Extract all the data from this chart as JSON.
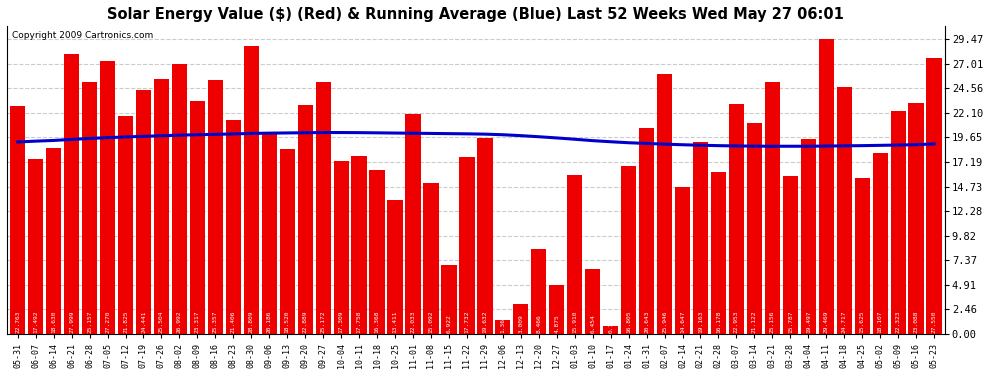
{
  "title": "Solar Energy Value ($) (Red) & Running Average (Blue) Last 52 Weeks Wed May 27 06:01",
  "copyright": "Copyright 2009 Cartronics.com",
  "bar_color": "#ee0000",
  "line_color": "#0000cc",
  "background_color": "#ffffff",
  "grid_color": "#cccccc",
  "yticks": [
    0.0,
    2.46,
    4.91,
    7.37,
    9.82,
    12.28,
    14.73,
    17.19,
    19.65,
    22.1,
    24.56,
    27.01,
    29.47
  ],
  "dates": [
    "05-31",
    "06-07",
    "06-14",
    "06-21",
    "06-28",
    "07-05",
    "07-12",
    "07-19",
    "07-26",
    "08-02",
    "08-09",
    "08-16",
    "08-23",
    "08-30",
    "09-06",
    "09-13",
    "09-20",
    "09-27",
    "10-04",
    "10-11",
    "10-18",
    "10-25",
    "11-01",
    "11-08",
    "11-15",
    "11-22",
    "11-29",
    "12-06",
    "12-13",
    "12-20",
    "12-27",
    "01-03",
    "01-10",
    "01-17",
    "01-24",
    "01-31",
    "02-07",
    "02-14",
    "02-21",
    "02-28",
    "03-07",
    "03-14",
    "03-21",
    "03-28",
    "04-04",
    "04-11",
    "04-18",
    "04-25",
    "05-02",
    "05-09",
    "05-16",
    "05-23"
  ],
  "bar_values": [
    22.763,
    17.492,
    18.63,
    27.999,
    25.157,
    27.27,
    21.825,
    24.441,
    25.504,
    26.992,
    23.317,
    25.357,
    21.406,
    28.809,
    20.186,
    18.52,
    22.889,
    25.172,
    17.309,
    17.758,
    16.368,
    13.411,
    22.033,
    15.092,
    6.922,
    17.732,
    19.632,
    1.369,
    3.009,
    8.466,
    4.875,
    15.91,
    6.454,
    0.772,
    16.805,
    20.643,
    25.946,
    14.647,
    19.163,
    16.178,
    22.953,
    21.122,
    25.156,
    15.787,
    19.497,
    29.469,
    24.717,
    15.625,
    18.107,
    22.323,
    23.088,
    27.55
  ],
  "running_avg": [
    19.2,
    19.28,
    19.35,
    19.45,
    19.55,
    19.63,
    19.7,
    19.76,
    19.82,
    19.88,
    19.92,
    19.96,
    20.0,
    20.05,
    20.08,
    20.1,
    20.12,
    20.14,
    20.14,
    20.13,
    20.11,
    20.09,
    20.07,
    20.05,
    20.03,
    20.01,
    19.98,
    19.92,
    19.83,
    19.72,
    19.6,
    19.47,
    19.33,
    19.22,
    19.12,
    19.05,
    18.98,
    18.92,
    18.87,
    18.83,
    18.8,
    18.78,
    18.77,
    18.77,
    18.77,
    18.79,
    18.81,
    18.83,
    18.86,
    18.89,
    18.93,
    19.0
  ]
}
